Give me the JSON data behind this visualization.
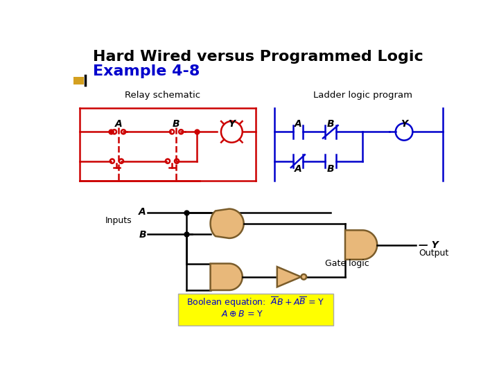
{
  "title_line1": "Hard Wired versus Programmed Logic",
  "title_line2": "Example 4-8",
  "title1_color": "#000000",
  "title2_color": "#0000CC",
  "bg_color": "#ffffff",
  "relay_label": "Relay schematic",
  "ladder_label": "Ladder logic program",
  "relay_color": "#cc0000",
  "ladder_color": "#0000cc",
  "gate_fill": "#e8b87a",
  "gate_outline": "#7a5c2a",
  "bool_bg": "#ffff00",
  "bool_text_color": "#0000cc",
  "yellow_sq": "#d4a020"
}
